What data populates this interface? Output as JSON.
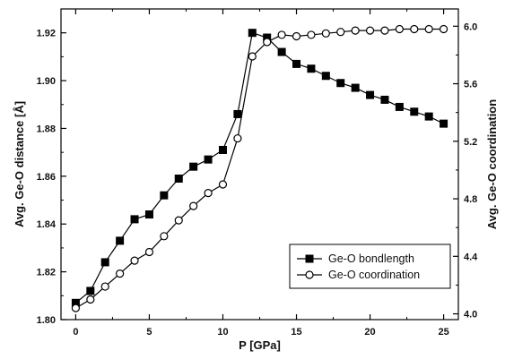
{
  "chart_data": {
    "type": "line",
    "xlabel": "P [GPa]",
    "ylabel_left": "Avg. Ge-O distance [Å]",
    "ylabel_right": "Avg. Ge-O coordination",
    "xlim": [
      -1.0,
      26.0
    ],
    "ylim_left": [
      1.8,
      1.93
    ],
    "ylim_right": [
      3.96,
      6.12
    ],
    "x_ticks": [
      0,
      5,
      10,
      15,
      20,
      25
    ],
    "y_left_ticks": [
      1.8,
      1.82,
      1.84,
      1.86,
      1.88,
      1.9,
      1.92
    ],
    "y_right_ticks": [
      4.0,
      4.4,
      4.8,
      5.2,
      5.6,
      6.0
    ],
    "x_tick_labels": [
      "0",
      "5",
      "10",
      "15",
      "20",
      "25"
    ],
    "y_left_tick_labels": [
      "1.80",
      "1.82",
      "1.84",
      "1.86",
      "1.88",
      "1.90",
      "1.92"
    ],
    "y_right_tick_labels": [
      "4.0",
      "4.4",
      "4.8",
      "5.2",
      "5.6",
      "6.0"
    ],
    "grid": false,
    "legend_position": "bottom-right",
    "series": [
      {
        "name": "Ge-O bondlength",
        "axis": "left",
        "marker": "filled-square",
        "x": [
          0,
          1,
          2,
          3,
          4,
          5,
          6,
          7,
          8,
          9,
          10,
          11,
          12,
          13,
          14,
          15,
          16,
          17,
          18,
          19,
          20,
          21,
          22,
          23,
          24,
          25
        ],
        "y": [
          1.807,
          1.812,
          1.824,
          1.833,
          1.842,
          1.844,
          1.852,
          1.859,
          1.864,
          1.867,
          1.871,
          1.886,
          1.92,
          1.918,
          1.912,
          1.907,
          1.905,
          1.902,
          1.899,
          1.897,
          1.894,
          1.892,
          1.889,
          1.887,
          1.885,
          1.882
        ]
      },
      {
        "name": "Ge-O coordination",
        "axis": "right",
        "marker": "open-circle",
        "x": [
          0,
          1,
          2,
          3,
          4,
          5,
          6,
          7,
          8,
          9,
          10,
          11,
          12,
          13,
          14,
          15,
          16,
          17,
          18,
          19,
          20,
          21,
          22,
          23,
          24,
          25
        ],
        "y": [
          4.04,
          4.1,
          4.19,
          4.28,
          4.37,
          4.43,
          4.54,
          4.65,
          4.75,
          4.84,
          4.9,
          5.22,
          5.79,
          5.89,
          5.94,
          5.93,
          5.94,
          5.95,
          5.96,
          5.97,
          5.97,
          5.97,
          5.98,
          5.98,
          5.98,
          5.98
        ]
      }
    ]
  }
}
